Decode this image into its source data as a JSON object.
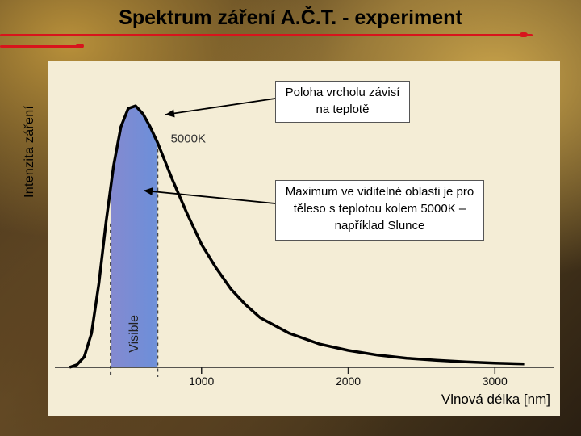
{
  "slide": {
    "title": "Spektrum záření A.Č.T. - experiment",
    "accent_color": "#d8141c"
  },
  "callouts": {
    "peak": "Poloha vrcholu závisí na teplotě",
    "visible": "Maximum ve viditelné oblasti je pro těleso s teplotou kolem 5000K – například Slunce"
  },
  "chart_data": {
    "type": "line",
    "xlabel": "Vlnová délka [nm]",
    "ylabel": "Intenzita záření",
    "xlim": [
      0,
      3400
    ],
    "ylim": [
      0,
      1.05
    ],
    "x_ticks": [
      1000,
      2000,
      3000
    ],
    "series": [
      {
        "name": "5000K",
        "x": [
          100,
          150,
          200,
          250,
          300,
          350,
          400,
          450,
          500,
          550,
          600,
          650,
          700,
          800,
          900,
          1000,
          1100,
          1200,
          1300,
          1400,
          1600,
          1800,
          2000,
          2200,
          2400,
          2600,
          2800,
          3000,
          3200
        ],
        "y": [
          0.0,
          0.01,
          0.04,
          0.13,
          0.32,
          0.56,
          0.77,
          0.92,
          0.99,
          1.0,
          0.97,
          0.92,
          0.86,
          0.72,
          0.59,
          0.47,
          0.38,
          0.3,
          0.24,
          0.19,
          0.13,
          0.09,
          0.065,
          0.047,
          0.035,
          0.027,
          0.021,
          0.016,
          0.013
        ]
      }
    ],
    "visible_band": {
      "label": "Visible",
      "range": [
        380,
        700
      ]
    },
    "grid": false
  }
}
